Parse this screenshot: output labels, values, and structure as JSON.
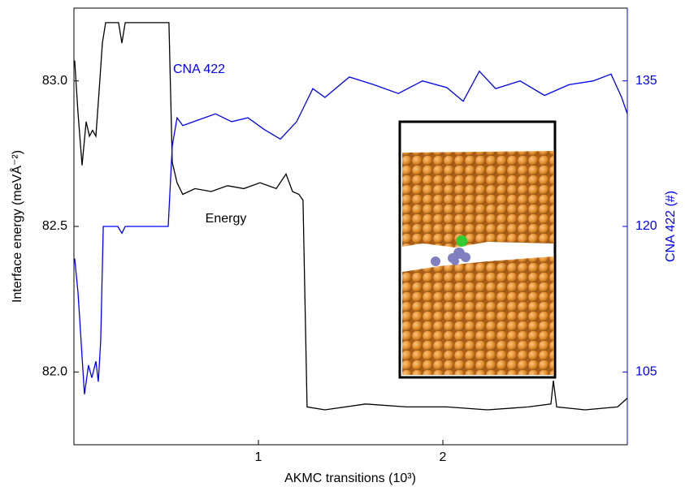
{
  "chart_data": {
    "type": "line",
    "x_label": "AKMC transitions (10³)",
    "y_label": "Interface energy (meVÅ⁻²)",
    "y2_label": "CNA 422 (#)",
    "xlim": [
      0,
      3
    ],
    "xticks": [
      1,
      2
    ],
    "ylim": [
      81.75,
      83.25
    ],
    "yticks": [
      {
        "value": 82,
        "label": "82.0"
      },
      82.5,
      {
        "value": 83,
        "label": "83.0"
      }
    ],
    "y2lim": [
      97.5,
      142.5
    ],
    "y2ticks": [
      105,
      120,
      135
    ],
    "y2_color": "#0000ff",
    "series": [
      {
        "name": "Energy",
        "color": "#000000",
        "axis": "y",
        "x": [
          0.004,
          0.022,
          0.044,
          0.066,
          0.084,
          0.101,
          0.119,
          0.137,
          0.154,
          0.172,
          0.242,
          0.26,
          0.278,
          0.515,
          0.533,
          0.559,
          0.59,
          0.656,
          0.744,
          0.833,
          0.921,
          1.009,
          1.097,
          1.15,
          1.185,
          1.22,
          1.242,
          1.264,
          1.361,
          1.581,
          1.802,
          2.022,
          2.242,
          2.463,
          2.586,
          2.599,
          2.617,
          2.771,
          2.947,
          3.0
        ],
        "values": [
          83.07,
          82.89,
          82.71,
          82.86,
          82.81,
          82.83,
          82.81,
          82.97,
          83.13,
          83.2,
          83.2,
          83.13,
          83.2,
          83.2,
          82.72,
          82.65,
          82.61,
          82.63,
          82.62,
          82.64,
          82.63,
          82.65,
          82.63,
          82.68,
          82.62,
          82.61,
          82.59,
          81.88,
          81.87,
          81.89,
          81.88,
          81.88,
          81.87,
          81.88,
          81.89,
          81.97,
          81.88,
          81.87,
          81.88,
          81.91
        ]
      },
      {
        "name": "CNA 422",
        "color": "#0000ff",
        "axis": "y2",
        "x": [
          0.004,
          0.022,
          0.057,
          0.079,
          0.097,
          0.119,
          0.132,
          0.145,
          0.159,
          0.238,
          0.26,
          0.278,
          0.511,
          0.533,
          0.559,
          0.59,
          0.678,
          0.767,
          0.855,
          0.943,
          1.031,
          1.119,
          1.207,
          1.251,
          1.295,
          1.361,
          1.493,
          1.626,
          1.758,
          1.89,
          2.022,
          2.11,
          2.198,
          2.286,
          2.419,
          2.551,
          2.683,
          2.815,
          2.912,
          2.969,
          3.0
        ],
        "values": [
          116.7,
          113.2,
          102.7,
          105.7,
          104.4,
          106.1,
          104.0,
          108.2,
          120.0,
          120.0,
          119.3,
          120.0,
          120.0,
          128.3,
          131.2,
          130.4,
          131.0,
          131.6,
          130.8,
          131.2,
          130.0,
          129.0,
          130.8,
          132.5,
          134.2,
          133.3,
          135.4,
          134.6,
          133.7,
          135.0,
          134.3,
          132.9,
          136.0,
          134.2,
          135.0,
          133.5,
          134.6,
          135.0,
          135.7,
          133.3,
          131.6
        ]
      }
    ]
  }
}
